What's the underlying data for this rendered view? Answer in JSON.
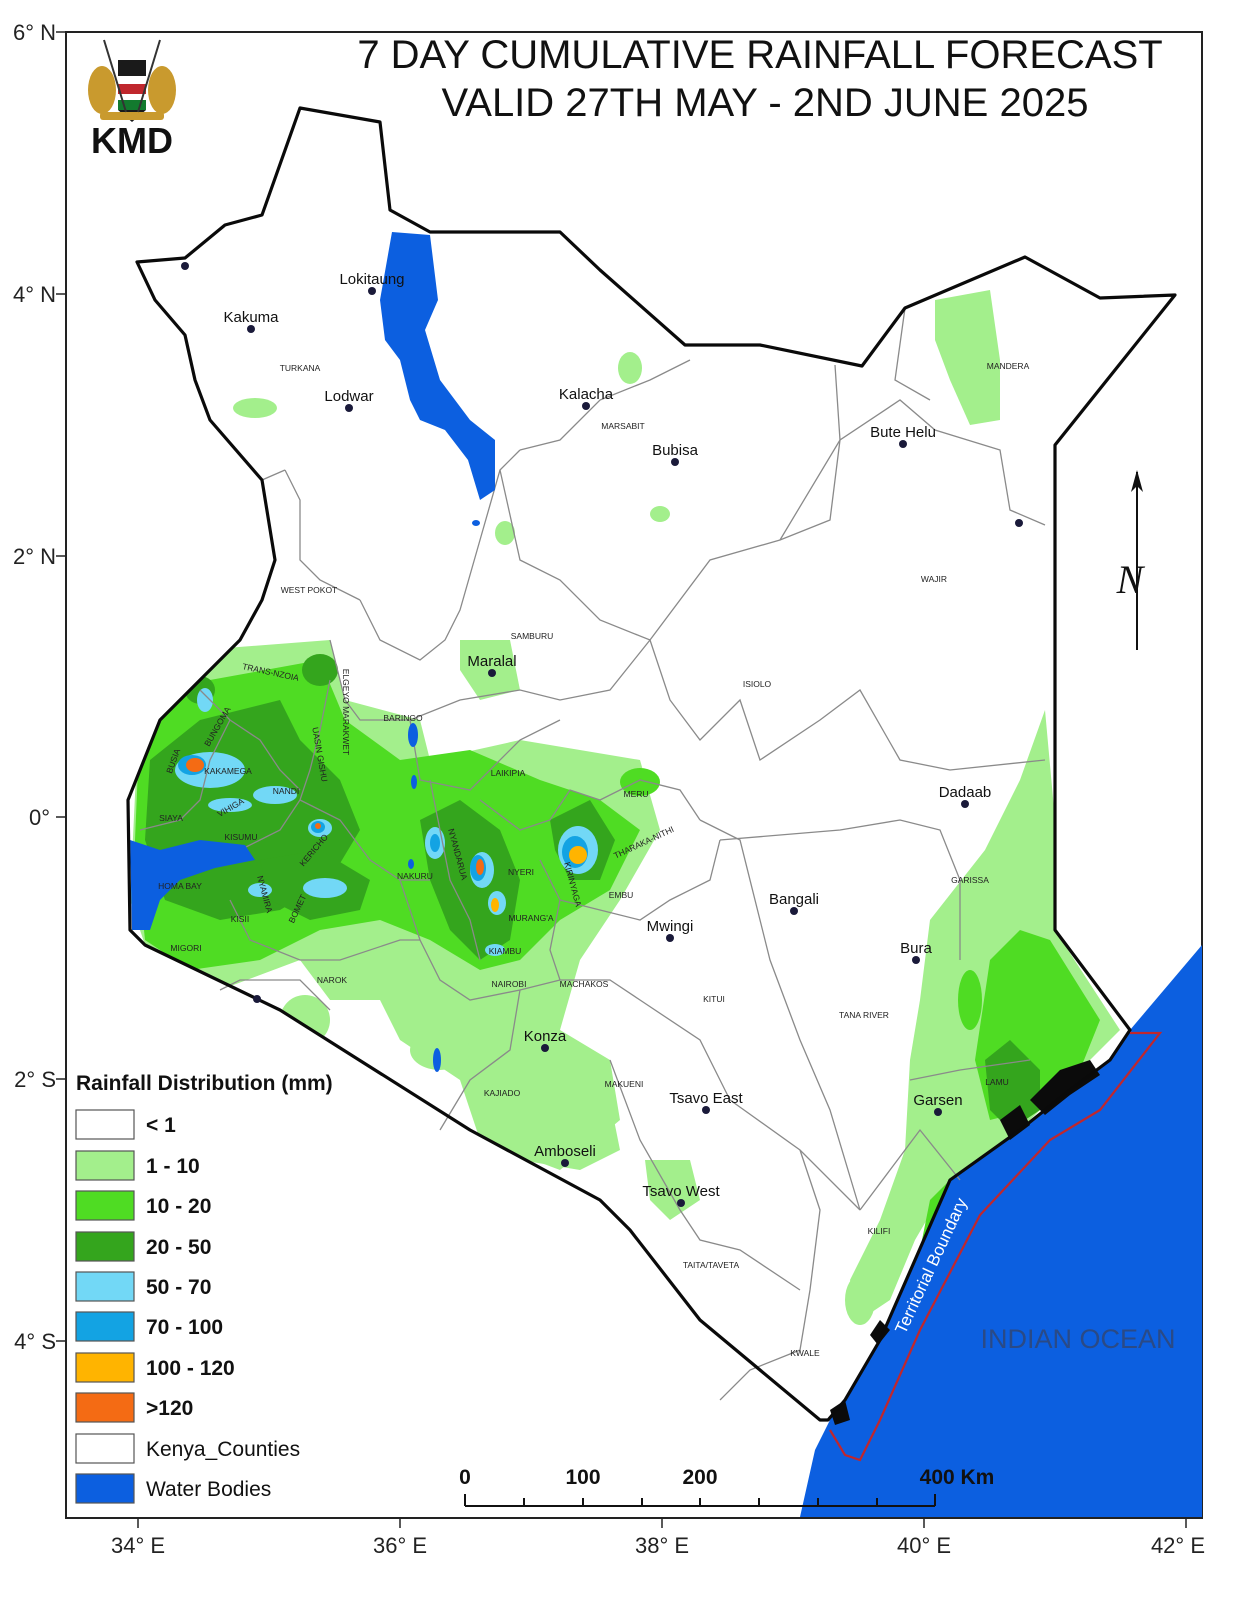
{
  "title": {
    "line1": "7 DAY CUMULATIVE RAINFALL FORECAST",
    "line2": "VALID 27TH MAY - 2ND JUNE 2025"
  },
  "logo": {
    "org": "KMD"
  },
  "axes": {
    "lat_labels": [
      "6° N",
      "4° N",
      "2° N",
      "0°",
      "2° S",
      "4° S"
    ],
    "lon_labels": [
      "34° E",
      "36° E",
      "38° E",
      "40° E",
      "42° E"
    ]
  },
  "towns": [
    "Lokitaung",
    "Kakuma",
    "Lodwar",
    "Kalacha",
    "Bubisa",
    "Bute Helu",
    "Maralal",
    "Dadaab",
    "Bangali",
    "Mwingi",
    "Bura",
    "Konza",
    "Tsavo East",
    "Garsen",
    "Amboseli",
    "Tsavo West"
  ],
  "counties": [
    "TURKANA",
    "MARSABIT",
    "MANDERA",
    "WAJIR",
    "WEST POKOT",
    "SAMBURU",
    "ISIOLO",
    "TRANS-NZOIA",
    "ELGEYO MARAKWET",
    "BARINGO",
    "BUNGOMA",
    "UASIN GISHU",
    "BUSIA",
    "KAKAMEGA",
    "NANDI",
    "LAIKIPIA",
    "MERU",
    "SIAYA",
    "VIHIGA",
    "KISUMU",
    "KERICHO",
    "NYANDARUA",
    "THARAKA-NITHI",
    "GARISSA",
    "NAKURU",
    "NYERI",
    "KIRINYAGA",
    "HOMA BAY",
    "NYAMIRA",
    "EMBU",
    "BOMET",
    "KISII",
    "MURANG'A",
    "MIGORI",
    "KIAMBU",
    "NAROK",
    "NAIROBI",
    "MACHAKOS",
    "KITUI",
    "TANA RIVER",
    "KAJIADO",
    "MAKUENI",
    "LAMU",
    "KILIFI",
    "TAITA/TAVETA",
    "KWALE"
  ],
  "legend": {
    "title": "Rainfall Distribution (mm)",
    "items": [
      {
        "label": "< 1",
        "color": "#ffffff"
      },
      {
        "label": "1 - 10",
        "color": "#a3ef8c"
      },
      {
        "label": "10 - 20",
        "color": "#4fdc23"
      },
      {
        "label": "20 - 50",
        "color": "#34a51d"
      },
      {
        "label": "50 - 70",
        "color": "#72d8f6"
      },
      {
        "label": "70 - 100",
        "color": "#13a3e3"
      },
      {
        "label": "100 - 120",
        "color": "#ffb400"
      },
      {
        "label": ">120",
        "color": "#f46b14"
      },
      {
        "label": "Kenya_Counties",
        "color": "#ffffff"
      },
      {
        "label": "Water Bodies",
        "color": "#0c5fe0"
      }
    ]
  },
  "scale_bar": {
    "labels": [
      "0",
      "100",
      "200",
      "400 Km"
    ]
  },
  "ocean_label": "INDIAN OCEAN",
  "boundary_label": "Territorial Boundary",
  "north_label": "N"
}
